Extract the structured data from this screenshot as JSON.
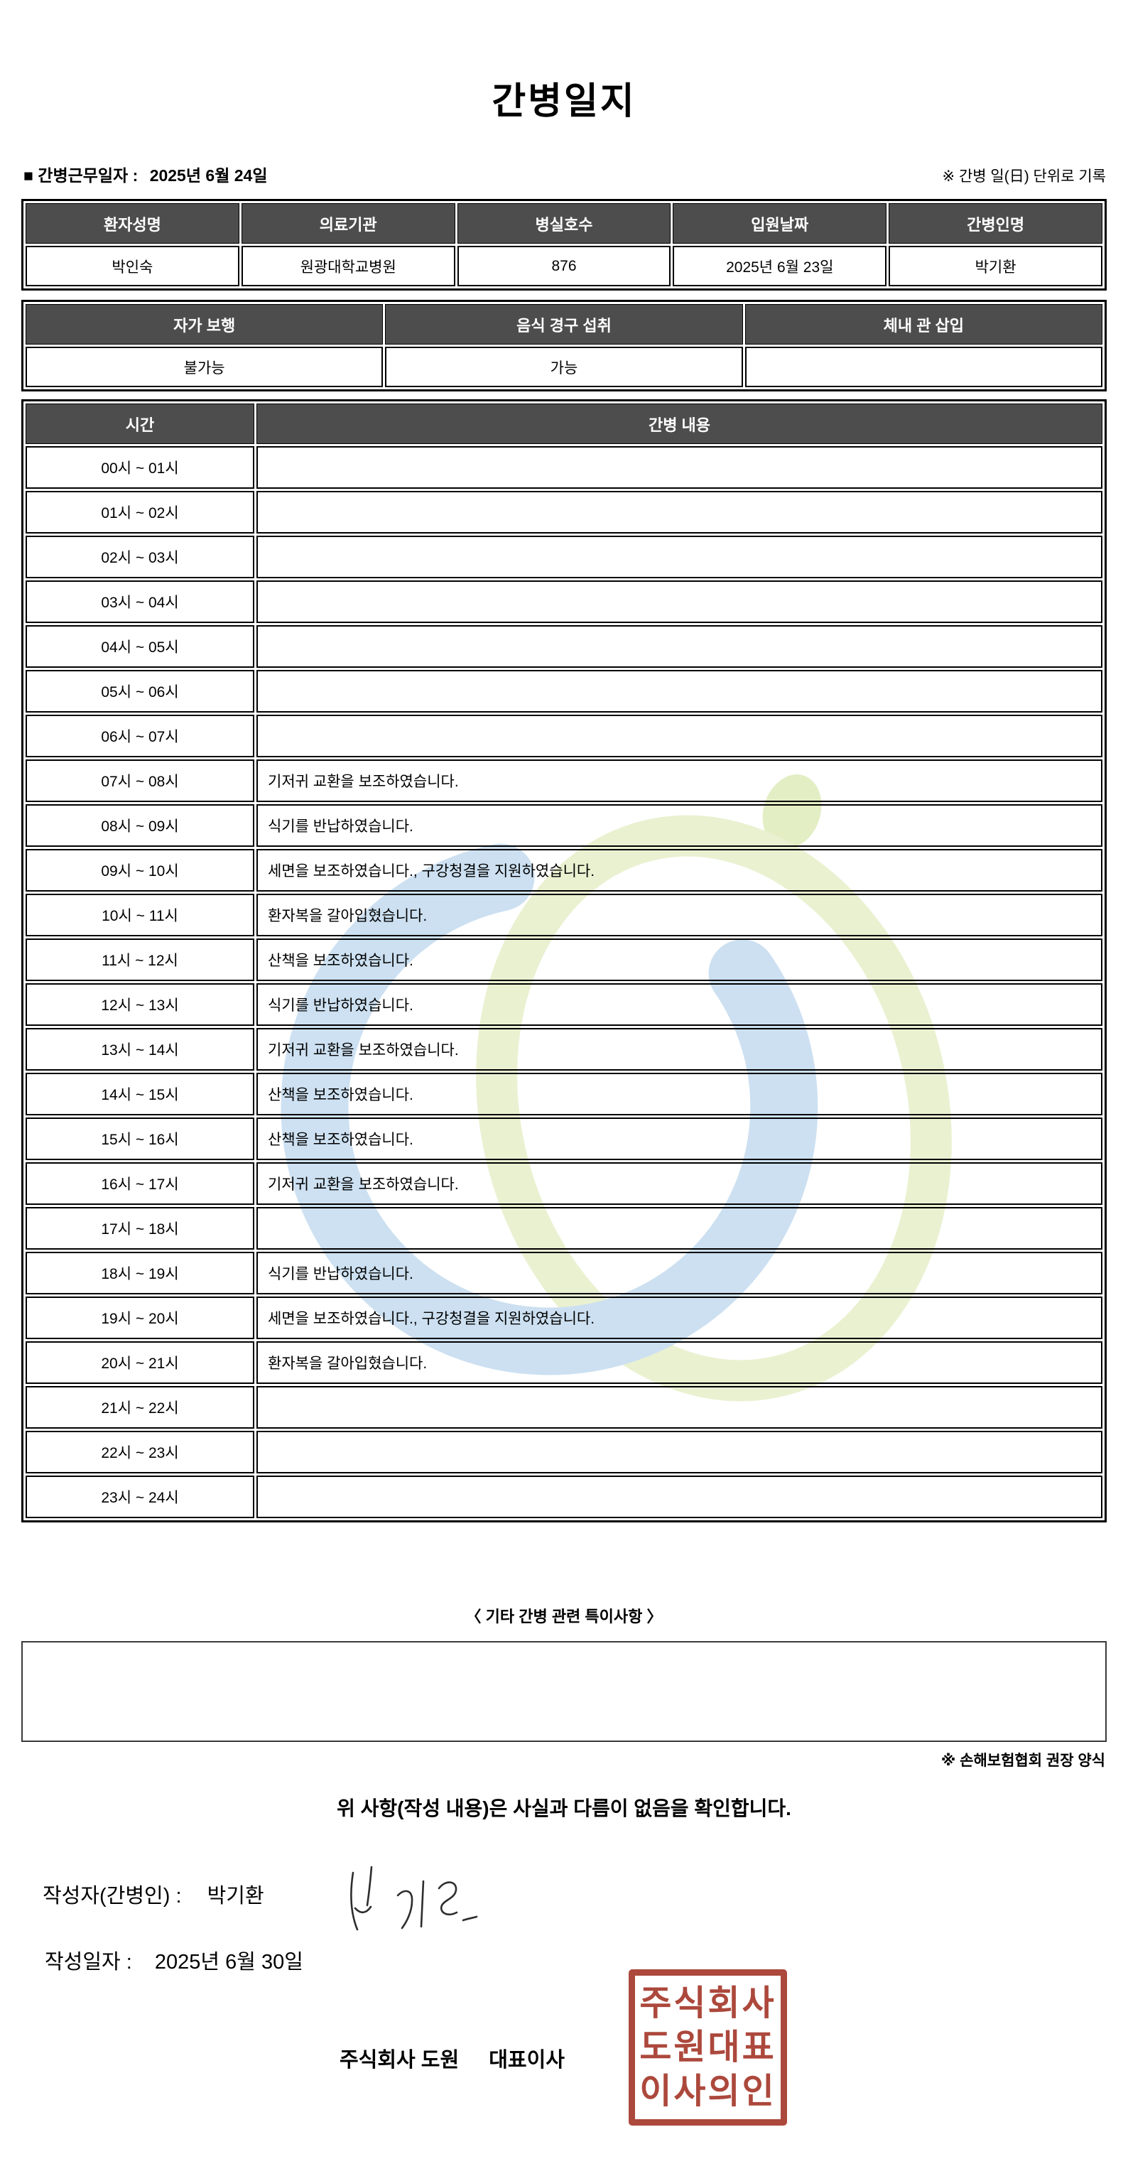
{
  "title": "간병일지",
  "meta": {
    "work_date_label": "■ 간병근무일자  :",
    "work_date": "2025년 6월 24일",
    "unit_note": "※ 간병 일(日) 단위로 기록"
  },
  "patient_table": {
    "headers": [
      "환자성명",
      "의료기관",
      "병실호수",
      "입원날짜",
      "간병인명"
    ],
    "values": [
      "박인숙",
      "원광대학교병원",
      "876",
      "2025년 6월 23일",
      "박기환"
    ]
  },
  "status_table": {
    "headers": [
      "자가 보행",
      "음식 경구 섭취",
      "체내 관 삽입"
    ],
    "values": [
      "불가능",
      "가능",
      ""
    ]
  },
  "log_table": {
    "headers": [
      "시간",
      "간병 내용"
    ],
    "rows": [
      {
        "time": "00시 ~ 01시",
        "content": ""
      },
      {
        "time": "01시 ~ 02시",
        "content": ""
      },
      {
        "time": "02시 ~ 03시",
        "content": ""
      },
      {
        "time": "03시 ~ 04시",
        "content": ""
      },
      {
        "time": "04시 ~ 05시",
        "content": ""
      },
      {
        "time": "05시 ~ 06시",
        "content": ""
      },
      {
        "time": "06시 ~ 07시",
        "content": ""
      },
      {
        "time": "07시 ~ 08시",
        "content": "기저귀 교환을 보조하였습니다."
      },
      {
        "time": "08시 ~ 09시",
        "content": "식기를 반납하였습니다."
      },
      {
        "time": "09시 ~ 10시",
        "content": "세면을 보조하였습니다., 구강청결을 지원하였습니다."
      },
      {
        "time": "10시 ~ 11시",
        "content": "환자복을 갈아입혔습니다."
      },
      {
        "time": "11시 ~ 12시",
        "content": "산책을 보조하였습니다."
      },
      {
        "time": "12시 ~ 13시",
        "content": "식기를 반납하였습니다."
      },
      {
        "time": "13시 ~ 14시",
        "content": "기저귀 교환을 보조하였습니다."
      },
      {
        "time": "14시 ~ 15시",
        "content": "산책을 보조하였습니다."
      },
      {
        "time": "15시 ~ 16시",
        "content": "산책을 보조하였습니다."
      },
      {
        "time": "16시 ~ 17시",
        "content": "기저귀 교환을 보조하였습니다."
      },
      {
        "time": "17시 ~ 18시",
        "content": ""
      },
      {
        "time": "18시 ~ 19시",
        "content": "식기를 반납하였습니다."
      },
      {
        "time": "19시 ~ 20시",
        "content": "세면을 보조하였습니다., 구강청결을 지원하였습니다."
      },
      {
        "time": "20시 ~ 21시",
        "content": "환자복을 갈아입혔습니다."
      },
      {
        "time": "21시 ~ 22시",
        "content": ""
      },
      {
        "time": "22시 ~ 23시",
        "content": ""
      },
      {
        "time": "23시 ~ 24시",
        "content": ""
      }
    ]
  },
  "notes_section": {
    "title": "〈 기타 간병 관련 특이사항 〉",
    "content": ""
  },
  "footer": {
    "form_note": "※ 손해보험협회 권장 양식",
    "confirmation": "위 사항(작성 내용)은 사실과 다름이 없음을 확인합니다.",
    "author_label": "작성자(간병인) :",
    "author_name": "박기환",
    "date_label": "작성일자 :",
    "date_value": "2025년 6월 30일",
    "company_name": "주식회사 도원",
    "ceo_title": "대표이사",
    "seal_lines": [
      "주식회사",
      "도원대표",
      "이사의인"
    ]
  },
  "colors": {
    "header_bg": "#4d4d4d",
    "header_text": "#ffffff",
    "border": "#000000",
    "seal_red": "#a5392c",
    "watermark_blue": "#a9cbe8",
    "watermark_green": "#dce8b0",
    "watermark_dot_green": "#cfe39a"
  }
}
